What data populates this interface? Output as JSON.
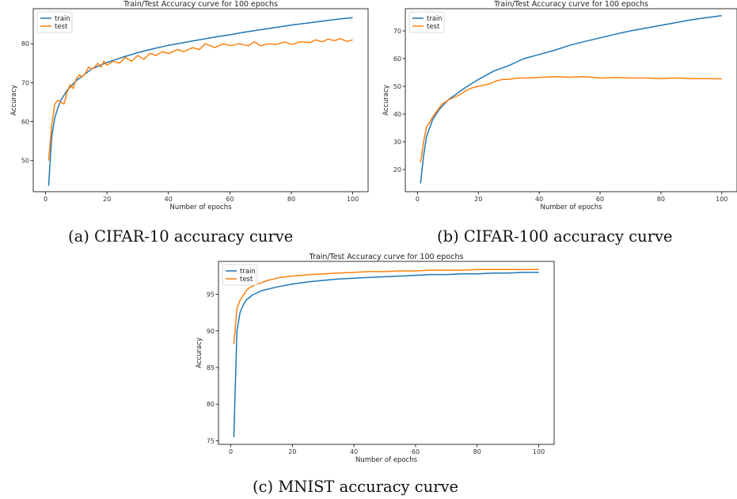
{
  "colors": {
    "train": "#1f77b4",
    "test": "#ff7f0e",
    "frame": "#000000"
  },
  "captions": {
    "a": "(a) CIFAR-10 accuracy curve",
    "b": "(b) CIFAR-100 accuracy curve",
    "c": "(c) MNIST accuracy curve"
  },
  "chart_data": [
    {
      "type": "line",
      "title": "Train/Test Accuracy curve for 100 epochs",
      "xlabel": "Number of epochs",
      "ylabel": "Accuracy",
      "xlim": [
        -4,
        105
      ],
      "ylim": [
        42,
        89
      ],
      "xticks": [
        0,
        20,
        40,
        60,
        80,
        100
      ],
      "yticks": [
        50,
        60,
        70,
        80
      ],
      "grid": false,
      "legend": "top-left",
      "series": [
        {
          "name": "train",
          "color": "#1f77b4",
          "points": [
            [
              1,
              43.5
            ],
            [
              2,
              56
            ],
            [
              3,
              61
            ],
            [
              4,
              63.5
            ],
            [
              5,
              65.5
            ],
            [
              7,
              68
            ],
            [
              10,
              70.5
            ],
            [
              15,
              73.5
            ],
            [
              20,
              75.2
            ],
            [
              25,
              76.5
            ],
            [
              30,
              77.7
            ],
            [
              35,
              78.7
            ],
            [
              40,
              79.6
            ],
            [
              45,
              80.3
            ],
            [
              50,
              81
            ],
            [
              55,
              81.7
            ],
            [
              60,
              82.3
            ],
            [
              65,
              83
            ],
            [
              70,
              83.6
            ],
            [
              75,
              84.2
            ],
            [
              80,
              84.8
            ],
            [
              85,
              85.3
            ],
            [
              90,
              85.8
            ],
            [
              95,
              86.3
            ],
            [
              100,
              86.7
            ]
          ]
        },
        {
          "name": "test",
          "color": "#ff7f0e",
          "points": [
            [
              1,
              50
            ],
            [
              2,
              59
            ],
            [
              3,
              64.5
            ],
            [
              4,
              65.5
            ],
            [
              5,
              65
            ],
            [
              6,
              64.5
            ],
            [
              7,
              67.5
            ],
            [
              8,
              69.5
            ],
            [
              9,
              68.5
            ],
            [
              10,
              71
            ],
            [
              11,
              72
            ],
            [
              12,
              71.5
            ],
            [
              13,
              72.5
            ],
            [
              14,
              74
            ],
            [
              15,
              73.5
            ],
            [
              16,
              74
            ],
            [
              17,
              75
            ],
            [
              18,
              74
            ],
            [
              19,
              75.5
            ],
            [
              20,
              74.5
            ],
            [
              22,
              75.5
            ],
            [
              24,
              75
            ],
            [
              26,
              76.5
            ],
            [
              28,
              75.5
            ],
            [
              30,
              77
            ],
            [
              32,
              76
            ],
            [
              34,
              77.5
            ],
            [
              36,
              77
            ],
            [
              38,
              78
            ],
            [
              40,
              77.5
            ],
            [
              43,
              78.5
            ],
            [
              45,
              78
            ],
            [
              48,
              79
            ],
            [
              50,
              78.5
            ],
            [
              52,
              80
            ],
            [
              55,
              79
            ],
            [
              58,
              80
            ],
            [
              60,
              79.5
            ],
            [
              63,
              80
            ],
            [
              66,
              79.5
            ],
            [
              68,
              80.5
            ],
            [
              70,
              79.5
            ],
            [
              73,
              80
            ],
            [
              75,
              79.8
            ],
            [
              78,
              80.5
            ],
            [
              80,
              79.8
            ],
            [
              83,
              80.5
            ],
            [
              86,
              80.3
            ],
            [
              88,
              81
            ],
            [
              90,
              80.5
            ],
            [
              92,
              81.2
            ],
            [
              94,
              80.8
            ],
            [
              96,
              81.3
            ],
            [
              98,
              80.6
            ],
            [
              100,
              81
            ]
          ]
        }
      ]
    },
    {
      "type": "line",
      "title": "Train/Test Accuracy curve for 100 epochs",
      "xlabel": "Number of epochs",
      "ylabel": "Accuracy",
      "xlim": [
        -4,
        105
      ],
      "ylim": [
        12,
        78
      ],
      "xticks": [
        0,
        20,
        40,
        60,
        80,
        100
      ],
      "yticks": [
        20,
        30,
        40,
        50,
        60,
        70
      ],
      "grid": false,
      "legend": "top-left",
      "series": [
        {
          "name": "train",
          "color": "#1f77b4",
          "points": [
            [
              1,
              15
            ],
            [
              2,
              25
            ],
            [
              3,
              32
            ],
            [
              4,
              35
            ],
            [
              5,
              38
            ],
            [
              7,
              41.5
            ],
            [
              10,
              45
            ],
            [
              15,
              49
            ],
            [
              20,
              52.5
            ],
            [
              25,
              55.5
            ],
            [
              30,
              57.5
            ],
            [
              35,
              60
            ],
            [
              40,
              61.5
            ],
            [
              45,
              63
            ],
            [
              50,
              64.8
            ],
            [
              55,
              66.2
            ],
            [
              60,
              67.5
            ],
            [
              65,
              68.8
            ],
            [
              70,
              70
            ],
            [
              75,
              71
            ],
            [
              80,
              72
            ],
            [
              85,
              73
            ],
            [
              90,
              74
            ],
            [
              95,
              74.8
            ],
            [
              100,
              75.5
            ]
          ]
        },
        {
          "name": "test",
          "color": "#ff7f0e",
          "points": [
            [
              1,
              22.5
            ],
            [
              2,
              30
            ],
            [
              3,
              35.5
            ],
            [
              4,
              37
            ],
            [
              5,
              39
            ],
            [
              6,
              40.5
            ],
            [
              7,
              42
            ],
            [
              8,
              43.5
            ],
            [
              10,
              45
            ],
            [
              12,
              46
            ],
            [
              14,
              47
            ],
            [
              16,
              48.5
            ],
            [
              18,
              49.5
            ],
            [
              20,
              50
            ],
            [
              22,
              50.5
            ],
            [
              24,
              51
            ],
            [
              26,
              52
            ],
            [
              28,
              52.5
            ],
            [
              30,
              52.5
            ],
            [
              33,
              53
            ],
            [
              36,
              53
            ],
            [
              40,
              53.2
            ],
            [
              45,
              53.5
            ],
            [
              50,
              53.3
            ],
            [
              55,
              53.5
            ],
            [
              60,
              53
            ],
            [
              65,
              53.2
            ],
            [
              70,
              53
            ],
            [
              75,
              53
            ],
            [
              80,
              52.8
            ],
            [
              85,
              53
            ],
            [
              90,
              52.8
            ],
            [
              95,
              52.8
            ],
            [
              100,
              52.7
            ]
          ]
        }
      ]
    },
    {
      "type": "line",
      "title": "Train/Test Accuracy curve for 100 epochs",
      "xlabel": "Number of epochs",
      "ylabel": "Accuracy",
      "xlim": [
        -4,
        105
      ],
      "ylim": [
        74.5,
        99.5
      ],
      "xticks": [
        0,
        20,
        40,
        60,
        80,
        100
      ],
      "yticks": [
        75,
        80,
        85,
        90,
        95
      ],
      "grid": false,
      "legend": "top-left",
      "series": [
        {
          "name": "train",
          "color": "#1f77b4",
          "points": [
            [
              1,
              75.5
            ],
            [
              2,
              90
            ],
            [
              3,
              92.5
            ],
            [
              4,
              93.5
            ],
            [
              5,
              94.2
            ],
            [
              7,
              94.9
            ],
            [
              10,
              95.5
            ],
            [
              15,
              96
            ],
            [
              20,
              96.4
            ],
            [
              25,
              96.7
            ],
            [
              30,
              96.9
            ],
            [
              35,
              97.1
            ],
            [
              40,
              97.2
            ],
            [
              45,
              97.3
            ],
            [
              50,
              97.4
            ],
            [
              55,
              97.5
            ],
            [
              60,
              97.6
            ],
            [
              65,
              97.7
            ],
            [
              70,
              97.7
            ],
            [
              75,
              97.8
            ],
            [
              80,
              97.8
            ],
            [
              85,
              97.9
            ],
            [
              90,
              97.9
            ],
            [
              95,
              98
            ],
            [
              100,
              98
            ]
          ]
        },
        {
          "name": "test",
          "color": "#ff7f0e",
          "points": [
            [
              1,
              88.2
            ],
            [
              2,
              93
            ],
            [
              3,
              94.2
            ],
            [
              4,
              94.8
            ],
            [
              5,
              95.5
            ],
            [
              6,
              95.9
            ],
            [
              7,
              96.1
            ],
            [
              8,
              96.3
            ],
            [
              10,
              96.6
            ],
            [
              12,
              96.9
            ],
            [
              14,
              97.1
            ],
            [
              16,
              97.3
            ],
            [
              18,
              97.4
            ],
            [
              20,
              97.5
            ],
            [
              23,
              97.6
            ],
            [
              26,
              97.7
            ],
            [
              30,
              97.8
            ],
            [
              35,
              97.9
            ],
            [
              40,
              98
            ],
            [
              45,
              98.1
            ],
            [
              50,
              98.1
            ],
            [
              55,
              98.2
            ],
            [
              60,
              98.2
            ],
            [
              65,
              98.3
            ],
            [
              70,
              98.3
            ],
            [
              75,
              98.3
            ],
            [
              80,
              98.4
            ],
            [
              85,
              98.4
            ],
            [
              90,
              98.4
            ],
            [
              95,
              98.4
            ],
            [
              100,
              98.4
            ]
          ]
        }
      ]
    }
  ]
}
